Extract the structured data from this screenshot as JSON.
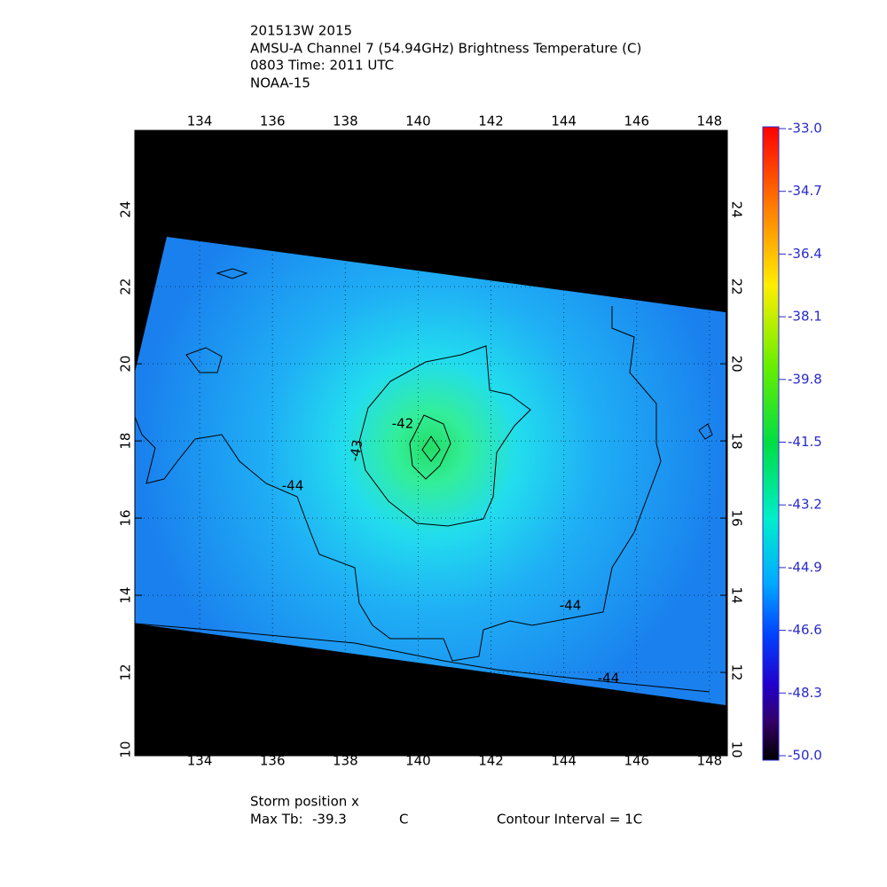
{
  "header": {
    "lines": [
      "201513W 2015",
      "AMSU-A Channel 7 (54.94GHz) Brightness Temperature (C)",
      "0803 Time: 2011 UTC",
      "NOAA-15"
    ]
  },
  "map": {
    "xlim": [
      132.22,
      148.49
    ],
    "ylim": [
      9.84,
      26.05
    ],
    "xticks": [
      134,
      136,
      138,
      140,
      142,
      144,
      146,
      148
    ],
    "yticks": [
      10,
      12,
      14,
      16,
      18,
      20,
      22,
      24
    ],
    "contour_labels": [
      -42,
      -43,
      -44,
      -44,
      -44
    ]
  },
  "colorbar": {
    "lim": [
      -50,
      -33
    ],
    "ticks": [
      {
        "value": -33,
        "label": "-33.0"
      },
      {
        "value": -34.7,
        "label": "-34.7"
      },
      {
        "value": -36.4,
        "label": "-36.4"
      },
      {
        "value": -38.1,
        "label": "-38.1"
      },
      {
        "value": -39.8,
        "label": "-39.8"
      },
      {
        "value": -41.5,
        "label": "-41.5"
      },
      {
        "value": -43.2,
        "label": "-43.2"
      },
      {
        "value": -44.9,
        "label": "-44.9"
      },
      {
        "value": -46.6,
        "label": "-46.6"
      },
      {
        "value": -48.3,
        "label": "-48.3"
      },
      {
        "value": -50,
        "label": "-50.0"
      }
    ]
  },
  "footer": {
    "storm_position": "Storm position x",
    "max_tb_label": "Max Tb:",
    "max_tb": -39.3,
    "unit": "C",
    "contour_interval": "Contour Interval = 1C"
  }
}
